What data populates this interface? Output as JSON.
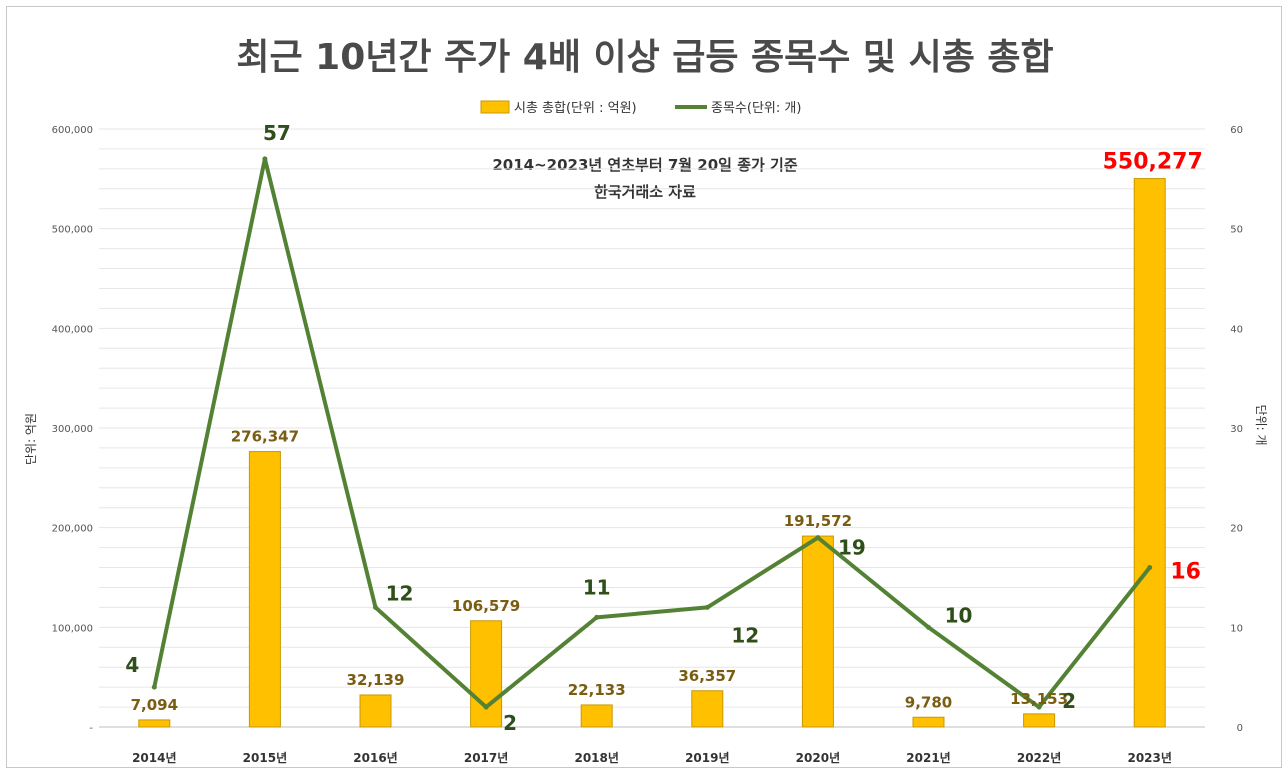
{
  "chart_data": {
    "type": "bar+line",
    "title": "최근 10년간 주가 4배 이상 급등 종목수 및 시총 총합",
    "subtitle_lines": [
      "2014~2023년 연초부터 7월 20일 종가 기준",
      "한국거래소 자료"
    ],
    "categories": [
      "2014년",
      "2015년",
      "2016년",
      "2017년",
      "2018년",
      "2019년",
      "2020년",
      "2021년",
      "2022년",
      "2023년"
    ],
    "series": [
      {
        "name": "시총 총합(단위 : 억원)",
        "type": "bar",
        "axis": "left",
        "color": "#FFC000",
        "values": [
          7094,
          276347,
          32139,
          106579,
          22133,
          36357,
          191572,
          9780,
          13153,
          550277
        ],
        "labels": [
          "7,094",
          "276,347",
          "32,139",
          "106,579",
          "22,133",
          "36,357",
          "191,572",
          "9,780",
          "13,153",
          "550,277"
        ]
      },
      {
        "name": "종목수(단위: 개)",
        "type": "line",
        "axis": "right",
        "color": "#548235",
        "values": [
          4,
          57,
          12,
          2,
          11,
          12,
          19,
          10,
          2,
          16
        ],
        "labels": [
          "4",
          "57",
          "12",
          "2",
          "11",
          "12",
          "19",
          "10",
          "2",
          "16"
        ]
      }
    ],
    "y_left": {
      "label": "단위: 억원",
      "ylim": [
        0,
        600000
      ],
      "ticks": [
        "-",
        "100,000",
        "200,000",
        "300,000",
        "400,000",
        "500,000",
        "600,000"
      ]
    },
    "y_right": {
      "label": "단위: 개",
      "ylim": [
        0,
        60
      ],
      "ticks": [
        "0",
        "10",
        "20",
        "30",
        "40",
        "50",
        "60"
      ]
    },
    "grid": true,
    "legend_position": "top-center",
    "highlight_index": 9
  }
}
